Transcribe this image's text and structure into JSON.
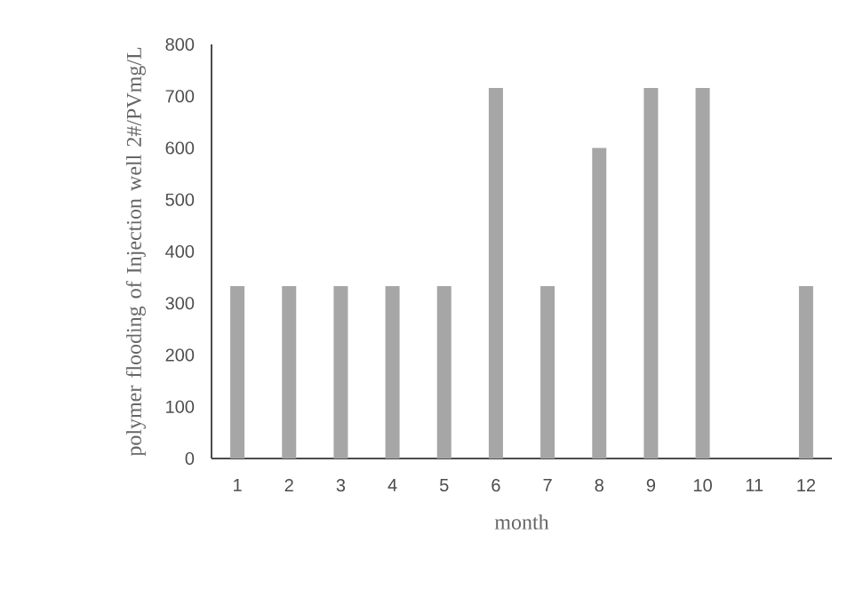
{
  "chart_data": {
    "type": "bar",
    "xlabel": "month",
    "ylabel": "polymer flooding of Injection well 2#/PVmg/L",
    "categories": [
      "1",
      "2",
      "3",
      "4",
      "5",
      "6",
      "7",
      "8",
      "9",
      "10",
      "11",
      "12"
    ],
    "values": [
      333,
      333,
      333,
      333,
      333,
      716,
      333,
      600,
      716,
      716,
      0,
      333
    ],
    "color": "#a6a6a6",
    "ylim": [
      0,
      800
    ],
    "yticks": [
      0,
      100,
      200,
      300,
      400,
      500,
      600,
      700,
      800
    ],
    "grid": false
  }
}
